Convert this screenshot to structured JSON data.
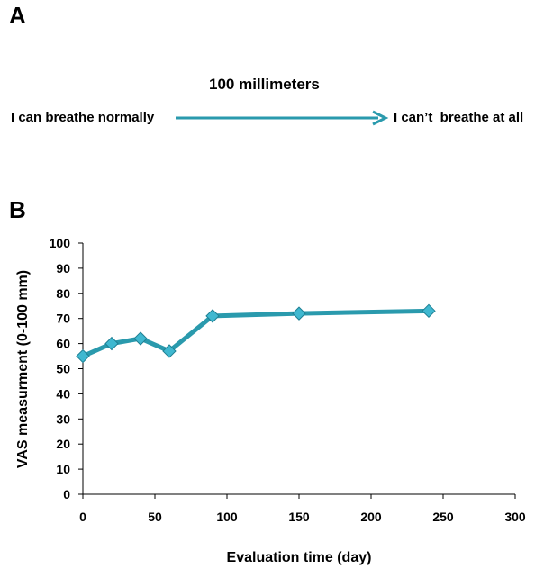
{
  "panel_a": {
    "label": "A",
    "scale_title": "100 millimeters",
    "left_anchor": "I can breathe normally",
    "right_anchor": "I can’t  breathe at all",
    "arrow_color": "#2a9aad"
  },
  "panel_b": {
    "label": "B"
  },
  "chart_data": {
    "type": "line",
    "title": "",
    "xlabel": "Evaluation time (day)",
    "ylabel": "VAS measurment (0-100 mm)",
    "xlim": [
      0,
      300
    ],
    "ylim": [
      0,
      100
    ],
    "x_ticks": [
      0,
      50,
      100,
      150,
      200,
      250,
      300
    ],
    "y_ticks": [
      0,
      10,
      20,
      30,
      40,
      50,
      60,
      70,
      80,
      90,
      100
    ],
    "grid": false,
    "legend": "none",
    "line_color": "#2a9aad",
    "marker": "diamond",
    "marker_color": "#3fb8d0",
    "series": [
      {
        "x": [
          0,
          20,
          40,
          60,
          90,
          150,
          240
        ],
        "y": [
          55,
          60,
          62,
          57,
          71,
          72,
          73
        ]
      }
    ]
  }
}
